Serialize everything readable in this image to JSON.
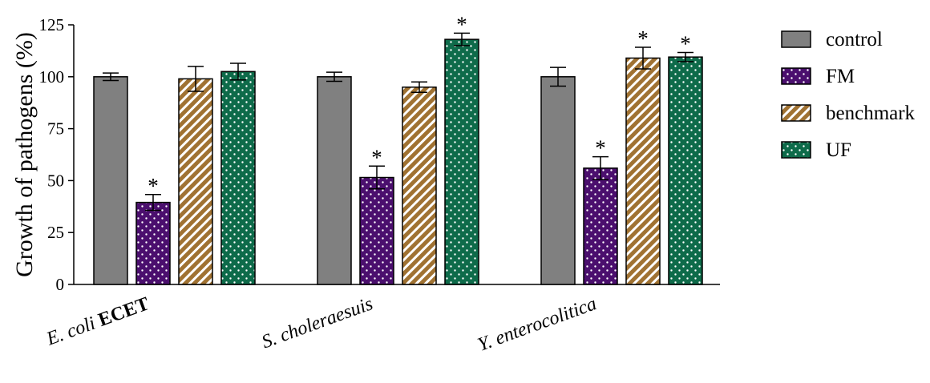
{
  "chart_data": {
    "type": "bar",
    "title": "",
    "xlabel": "",
    "ylabel": "Growth of pathogens  (%)",
    "ylim": [
      0,
      125
    ],
    "yticks": [
      0,
      25,
      50,
      75,
      100,
      125
    ],
    "categories": [
      {
        "italic": "E. coli",
        "bold": "ECET"
      },
      {
        "italic": "S. choleraesuis",
        "bold": ""
      },
      {
        "italic": "Y. enterocolitica",
        "bold": ""
      }
    ],
    "series": [
      {
        "name": "control",
        "values": [
          100,
          100,
          100
        ],
        "errors": [
          1.8,
          2.2,
          4.5
        ],
        "significant": [
          false,
          false,
          false
        ],
        "color": "#808080",
        "pattern": "solid"
      },
      {
        "name": "FM",
        "values": [
          39.5,
          51.5,
          56
        ],
        "errors": [
          3.8,
          5.5,
          5.5
        ],
        "significant": [
          true,
          true,
          true
        ],
        "color": "#4b0f6e",
        "pattern": "dots"
      },
      {
        "name": "benchmark",
        "values": [
          99,
          95,
          109
        ],
        "errors": [
          6,
          2.5,
          5.2
        ],
        "significant": [
          false,
          false,
          true
        ],
        "color": "#a07232",
        "pattern": "stripes"
      },
      {
        "name": "UF",
        "values": [
          102.5,
          118,
          109.5
        ],
        "errors": [
          4,
          3,
          2.2
        ],
        "significant": [
          false,
          true,
          true
        ],
        "color": "#0e6b4a",
        "pattern": "dots"
      }
    ],
    "significance_marker": "*",
    "legend_position": "right"
  }
}
